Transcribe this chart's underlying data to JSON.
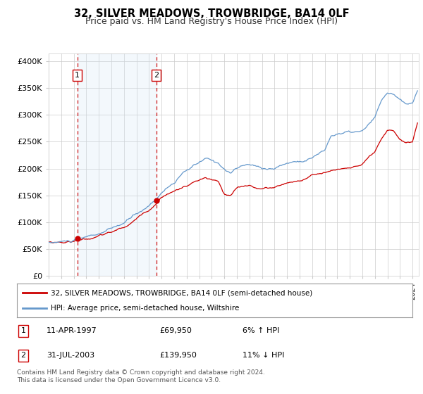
{
  "title": "32, SILVER MEADOWS, TROWBRIDGE, BA14 0LF",
  "subtitle": "Price paid vs. HM Land Registry's House Price Index (HPI)",
  "ylabel_ticks": [
    "£0",
    "£50K",
    "£100K",
    "£150K",
    "£200K",
    "£250K",
    "£300K",
    "£350K",
    "£400K"
  ],
  "ytick_values": [
    0,
    50000,
    100000,
    150000,
    200000,
    250000,
    300000,
    350000,
    400000
  ],
  "ylim": [
    0,
    415000
  ],
  "xlim_min": 1995.0,
  "xlim_max": 2024.5,
  "sale1_date_num": 1997.28,
  "sale1_price": 69950,
  "sale1_label": "1",
  "sale2_date_num": 2003.58,
  "sale2_price": 139950,
  "sale2_label": "2",
  "legend_line1": "32, SILVER MEADOWS, TROWBRIDGE, BA14 0LF (semi-detached house)",
  "legend_line2": "HPI: Average price, semi-detached house, Wiltshire",
  "property_color": "#cc0000",
  "hpi_color": "#6699cc",
  "shade_color": "#d0e4f5",
  "background_color": "#ffffff",
  "plot_bg_color": "#ffffff",
  "grid_color": "#cccccc",
  "footer": "Contains HM Land Registry data © Crown copyright and database right 2024.\nThis data is licensed under the Open Government Licence v3.0."
}
